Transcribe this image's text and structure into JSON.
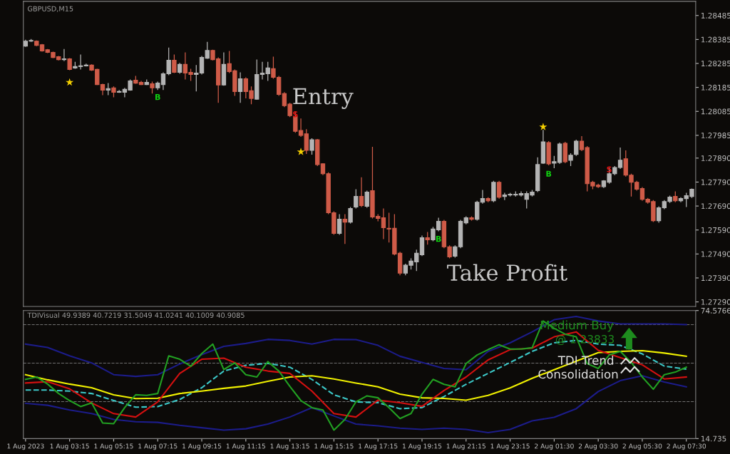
{
  "chart_data": [
    {
      "type": "candlestick",
      "title": "GBPUSD,M15",
      "tick_labels": "y",
      "ylim": [
        1.27271,
        1.28544
      ],
      "yticks": [
        1.28485,
        1.28385,
        1.28285,
        1.28185,
        1.28085,
        1.27985,
        {
          "value": 1.2789,
          "label": "1.27890"
        },
        {
          "value": 1.2779,
          "label": "1.27790"
        },
        {
          "value": 1.2769,
          "label": "1.27690"
        },
        {
          "value": 1.2759,
          "label": "1.27590"
        },
        {
          "value": 1.2749,
          "label": "1.27490"
        },
        {
          "value": 1.2739,
          "label": "1.27390"
        },
        {
          "value": 1.2729,
          "label": "1.27290"
        }
      ],
      "series": [
        {
          "type": "candlestick",
          "colors": [
            "#b4b4b4",
            "#b4b4b4",
            "#cf5b48",
            "#cf5b48",
            "#cf5b48",
            "#cf5b48",
            "#cf5b48",
            "#b4b4b4",
            "#cf5b48",
            "#b4b4b4",
            "#b4b4b4",
            "#b4b4b4",
            "#cf5b48",
            "#cf5b48",
            "#cf5b48",
            "#b4b4b4",
            "#cf5b48",
            "#b4b4b4",
            "#b4b4b4",
            "#b4b4b4",
            "#cf5b48",
            "#cf5b48",
            "#b4b4b4",
            "#cf5b48",
            "#b4b4b4",
            "#b4b4b4",
            "#b4b4b4",
            "#cf5b48",
            "#b4b4b4",
            "#cf5b48",
            "#cf5b48",
            "#b4b4b4",
            "#b4b4b4",
            "#b4b4b4",
            "#cf5b48",
            "#cf5b48",
            "#b4b4b4",
            "#cf5b48",
            "#cf5b48",
            "#b4b4b4",
            "#cf5b48",
            "#cf5b48",
            "#b4b4b4",
            "#b4b4b4",
            "#b4b4b4",
            "#cf5b48",
            "#cf5b48",
            "#cf5b48",
            "#cf5b48",
            "#cf5b48",
            "#cf5b48",
            "#cf5b48",
            "#b4b4b4",
            "#cf5b48",
            "#cf5b48",
            "#cf5b48",
            "#cf5b48",
            "#b4b4b4",
            "#cf5b48",
            "#b4b4b4",
            "#b4b4b4",
            "#cf5b48",
            "#b4b4b4",
            "#cf5b48",
            "#cf5b48",
            "#cf5b48",
            "#cf5b48",
            "#cf5b48",
            "#cf5b48",
            "#b4b4b4",
            "#b4b4b4",
            "#b4b4b4",
            "#b4b4b4",
            "#cf5b48",
            "#b4b4b4",
            "#b4b4b4",
            "#cf5b48",
            "#cf5b48",
            "#b4b4b4",
            "#b4b4b4",
            "#b4b4b4",
            "#cf5b48",
            "#b4b4b4",
            "#b4b4b4",
            "#cf5b48",
            "#b4b4b4",
            "#cf5b48",
            "#b4b4b4",
            "#b4b4b4",
            "#b4b4b4",
            "#b4b4b4",
            "#b4b4b4",
            "#b4b4b4",
            "#b4b4b4",
            "#b4b4b4",
            "#cf5b48",
            "#b4b4b4",
            "#b4b4b4",
            "#cf5b48",
            "#b4b4b4",
            "#b4b4b4",
            "#cf5b48",
            "#cf5b48",
            "#cf5b48",
            "#cf5b48",
            "#b4b4b4",
            "#b4b4b4",
            "#b4b4b4",
            "#b4b4b4",
            "#cf5b48",
            "#cf5b48",
            "#cf5b48",
            "#cf5b48",
            "#cf5b48",
            "#cf5b48",
            "#b4b4b4",
            "#b4b4b4",
            "#b4b4b4",
            "#cf5b48",
            "#b4b4b4",
            "#b4b4b4",
            "#b4b4b4"
          ],
          "ohlc": [
            [
              1.28357,
              1.28384,
              1.28354,
              1.28378
            ],
            [
              1.28378,
              1.28387,
              1.28375,
              1.28381
            ],
            [
              1.28378,
              1.28381,
              1.28357,
              1.2836
            ],
            [
              1.28363,
              1.28366,
              1.28334,
              1.28337
            ],
            [
              1.28342,
              1.28345,
              1.28328,
              1.28331
            ],
            [
              1.28331,
              1.28334,
              1.28307,
              1.2831
            ],
            [
              1.28313,
              1.28316,
              1.28298,
              1.28301
            ],
            [
              1.28301,
              1.28345,
              1.28295,
              1.28304
            ],
            [
              1.28304,
              1.28307,
              1.28257,
              1.2826
            ],
            [
              1.28266,
              1.28292,
              1.28263,
              1.28272
            ],
            [
              1.28272,
              1.28322,
              1.2826,
              1.28275
            ],
            [
              1.28275,
              1.28284,
              1.28272,
              1.28278
            ],
            [
              1.28278,
              1.28281,
              1.28254,
              1.28257
            ],
            [
              1.2826,
              1.28263,
              1.28195,
              1.28197
            ],
            [
              1.28197,
              1.282,
              1.28153,
              1.28174
            ],
            [
              1.28174,
              1.28203,
              1.28153,
              1.2818
            ],
            [
              1.28183,
              1.28189,
              1.28144,
              1.28165
            ],
            [
              1.28165,
              1.28174,
              1.28162,
              1.28168
            ],
            [
              1.28165,
              1.28183,
              1.28144,
              1.28177
            ],
            [
              1.28174,
              1.28218,
              1.28171,
              1.28212
            ],
            [
              1.28215,
              1.28233,
              1.282,
              1.28203
            ],
            [
              1.28206,
              1.28212,
              1.28195,
              1.28197
            ],
            [
              1.28197,
              1.28218,
              1.28195,
              1.28206
            ],
            [
              1.282,
              1.28209,
              1.28159,
              1.28183
            ],
            [
              1.28183,
              1.28209,
              1.28174,
              1.28203
            ],
            [
              1.28197,
              1.28248,
              1.28174,
              1.28242
            ],
            [
              1.28242,
              1.28351,
              1.28236,
              1.28298
            ],
            [
              1.28298,
              1.28322,
              1.28245,
              1.28248
            ],
            [
              1.28248,
              1.28287,
              1.28242,
              1.28281
            ],
            [
              1.28281,
              1.28331,
              1.28218,
              1.28245
            ],
            [
              1.28248,
              1.28263,
              1.28212,
              1.28239
            ],
            [
              1.28239,
              1.28278,
              1.28168,
              1.28245
            ],
            [
              1.28245,
              1.28316,
              1.28239,
              1.2831
            ],
            [
              1.28307,
              1.28375,
              1.28304,
              1.28339
            ],
            [
              1.28339,
              1.28342,
              1.28298,
              1.28301
            ],
            [
              1.28304,
              1.2831,
              1.28121,
              1.28195
            ],
            [
              1.28195,
              1.28331,
              1.28192,
              1.28281
            ],
            [
              1.28284,
              1.28337,
              1.28245,
              1.28251
            ],
            [
              1.28254,
              1.2826,
              1.2815,
              1.28168
            ],
            [
              1.28168,
              1.28248,
              1.28121,
              1.28221
            ],
            [
              1.28221,
              1.28227,
              1.28139,
              1.28168
            ],
            [
              1.28171,
              1.28189,
              1.28115,
              1.28139
            ],
            [
              1.28136,
              1.28301,
              1.28133,
              1.28239
            ],
            [
              1.28239,
              1.28292,
              1.28218,
              1.28245
            ],
            [
              1.28242,
              1.28292,
              1.28212,
              1.28266
            ],
            [
              1.28263,
              1.28313,
              1.28221,
              1.28227
            ],
            [
              1.28227,
              1.28233,
              1.2815,
              1.28156
            ],
            [
              1.28159,
              1.28165,
              1.28103,
              1.28109
            ],
            [
              1.28115,
              1.28121,
              1.28061,
              1.28067
            ],
            [
              1.28064,
              1.28085,
              1.27996,
              1.28002
            ],
            [
              1.28005,
              1.28055,
              1.27979,
              1.27985
            ],
            [
              1.27991,
              1.28011,
              1.27907,
              1.27922
            ],
            [
              1.27922,
              1.27973,
              1.27904,
              1.27967
            ],
            [
              1.27967,
              1.2797,
              1.27857,
              1.27863
            ],
            [
              1.27866,
              1.27869,
              1.27819,
              1.27825
            ],
            [
              1.27825,
              1.27831,
              1.27656,
              1.27662
            ],
            [
              1.27662,
              1.27668,
              1.2757,
              1.27576
            ],
            [
              1.27576,
              1.27656,
              1.2757,
              1.27635
            ],
            [
              1.27635,
              1.27656,
              1.27532,
              1.27623
            ],
            [
              1.27623,
              1.27686,
              1.27617,
              1.2768
            ],
            [
              1.27686,
              1.2776,
              1.2768,
              1.2773
            ],
            [
              1.2773,
              1.2781,
              1.27686,
              1.27692
            ],
            [
              1.27689,
              1.27754,
              1.27683,
              1.27748
            ],
            [
              1.27754,
              1.27937,
              1.27638,
              1.27644
            ],
            [
              1.27647,
              1.27656,
              1.27626,
              1.27638
            ],
            [
              1.27641,
              1.2768,
              1.27552,
              1.276
            ],
            [
              1.27597,
              1.27662,
              1.27538,
              1.27594
            ],
            [
              1.27597,
              1.27656,
              1.27484,
              1.2749
            ],
            [
              1.27493,
              1.27499,
              1.27401,
              1.2741
            ],
            [
              1.2741,
              1.27449,
              1.27401,
              1.27443
            ],
            [
              1.27443,
              1.27472,
              1.27425,
              1.2746
            ],
            [
              1.27457,
              1.27508,
              1.27419,
              1.27493
            ],
            [
              1.27487,
              1.27567,
              1.27481,
              1.27558
            ],
            [
              1.27558,
              1.27582,
              1.27529,
              1.27549
            ],
            [
              1.27549,
              1.27603,
              1.27543,
              1.27594
            ],
            [
              1.27591,
              1.27641,
              1.27585,
              1.27626
            ],
            [
              1.27626,
              1.27632,
              1.27514,
              1.2752
            ],
            [
              1.2752,
              1.27526,
              1.27472,
              1.27478
            ],
            [
              1.27481,
              1.27526,
              1.27475,
              1.2752
            ],
            [
              1.2752,
              1.27632,
              1.27514,
              1.27626
            ],
            [
              1.2762,
              1.27647,
              1.27614,
              1.27641
            ],
            [
              1.27641,
              1.27647,
              1.27629,
              1.27635
            ],
            [
              1.27635,
              1.27712,
              1.27629,
              1.27706
            ],
            [
              1.27706,
              1.27757,
              1.277,
              1.27721
            ],
            [
              1.27721,
              1.27727,
              1.27706,
              1.27712
            ],
            [
              1.27712,
              1.27795,
              1.27706,
              1.27789
            ],
            [
              1.27789,
              1.27795,
              1.27721,
              1.27727
            ],
            [
              1.2773,
              1.27745,
              1.27715,
              1.27736
            ],
            [
              1.27736,
              1.27745,
              1.2773,
              1.27739
            ],
            [
              1.27736,
              1.27751,
              1.2773,
              1.27739
            ],
            [
              1.27736,
              1.27751,
              1.2773,
              1.27742
            ],
            [
              1.27718,
              1.27751,
              1.2768,
              1.27742
            ],
            [
              1.27736,
              1.27757,
              1.2773,
              1.27748
            ],
            [
              1.27754,
              1.27893,
              1.27748,
              1.27863
            ],
            [
              1.27869,
              1.28008,
              1.27866,
              1.27958
            ],
            [
              1.27955,
              1.27961,
              1.2786,
              1.27866
            ],
            [
              1.27869,
              1.27899,
              1.27848,
              1.27875
            ],
            [
              1.27872,
              1.27955,
              1.27866,
              1.27949
            ],
            [
              1.27952,
              1.27958,
              1.27869,
              1.27875
            ],
            [
              1.27881,
              1.2791,
              1.27857,
              1.27902
            ],
            [
              1.27905,
              1.27967,
              1.27899,
              1.27961
            ],
            [
              1.27961,
              1.27982,
              1.27919,
              1.27925
            ],
            [
              1.27934,
              1.2794,
              1.27751,
              1.27783
            ],
            [
              1.27789,
              1.27795,
              1.2776,
              1.27774
            ],
            [
              1.27777,
              1.27783,
              1.27765,
              1.27771
            ],
            [
              1.27771,
              1.27798,
              1.27765,
              1.27795
            ],
            [
              1.27789,
              1.27849,
              1.27783,
              1.27825
            ],
            [
              1.27825,
              1.27857,
              1.27819,
              1.27851
            ],
            [
              1.27851,
              1.27934,
              1.27845,
              1.27881
            ],
            [
              1.27887,
              1.27922,
              1.27813,
              1.27819
            ],
            [
              1.27819,
              1.27825,
              1.2773,
              1.27789
            ],
            [
              1.27789,
              1.27795,
              1.27754,
              1.2776
            ],
            [
              1.27763,
              1.27769,
              1.27712,
              1.27718
            ],
            [
              1.27718,
              1.27724,
              1.277,
              1.27706
            ],
            [
              1.27709,
              1.27715,
              1.27623,
              1.27629
            ],
            [
              1.27629,
              1.27689,
              1.2762,
              1.27683
            ],
            [
              1.27683,
              1.27715,
              1.27677,
              1.27709
            ],
            [
              1.27709,
              1.27733,
              1.27703,
              1.27727
            ],
            [
              1.2773,
              1.27751,
              1.27706,
              1.27712
            ],
            [
              1.27712,
              1.27727,
              1.27706,
              1.27721
            ],
            [
              1.27721,
              1.27745,
              1.27686,
              1.27733
            ],
            [
              1.2773,
              1.27763,
              1.27724,
              1.2776
            ]
          ]
        },
        {
          "type": "scatter",
          "marker": "star",
          "color": "#f5d000",
          "values": [
            null,
            null,
            null,
            null,
            null,
            null,
            null,
            null,
            1.28206,
            null,
            null,
            null,
            null,
            null,
            null,
            null,
            null,
            null,
            null,
            null,
            null,
            null,
            null,
            null,
            null,
            null,
            null,
            null,
            null,
            null,
            null,
            null,
            null,
            null,
            null,
            null,
            null,
            null,
            null,
            null,
            null,
            null,
            null,
            null,
            null,
            null,
            null,
            null,
            null,
            null,
            1.27916,
            null,
            null,
            null,
            null,
            null,
            null,
            null,
            null,
            null,
            null,
            null,
            null,
            null,
            null,
            null,
            null,
            null,
            null,
            null,
            null,
            null,
            null,
            null,
            null,
            null,
            null,
            null,
            null,
            null,
            null,
            null,
            null,
            null,
            null,
            null,
            null,
            null,
            null,
            null,
            null,
            null,
            null,
            null,
            1.2802,
            null,
            null,
            null,
            null,
            null,
            null,
            null,
            null,
            null,
            null,
            null,
            null,
            null,
            null,
            null,
            null,
            null,
            null,
            null,
            null,
            null,
            null,
            null,
            null,
            null,
            null,
            null
          ]
        }
      ],
      "annotations": [
        "Entry",
        "Take Profit",
        "B",
        "B",
        "B",
        "S",
        "S"
      ]
    },
    {
      "type": "line",
      "title": "TDIVisual 49.9389 40.7219 31.5049 41.0241 40.1009 40.9085",
      "categories": [
        "1 Aug 2023",
        null,
        null,
        null,
        null,
        null,
        null,
        null,
        "1 Aug 03:15",
        null,
        null,
        null,
        null,
        null,
        null,
        null,
        "1 Aug 05:15",
        null,
        null,
        null,
        null,
        null,
        null,
        null,
        "1 Aug 07:15",
        null,
        null,
        null,
        null,
        null,
        null,
        null,
        "1 Aug 09:15",
        null,
        null,
        null,
        null,
        null,
        null,
        null,
        "1 Aug 11:15",
        null,
        null,
        null,
        null,
        null,
        null,
        null,
        "1 Aug 13:15",
        null,
        null,
        null,
        null,
        null,
        null,
        null,
        "1 Aug 15:15",
        null,
        null,
        null,
        null,
        null,
        null,
        null,
        "1 Aug 17:15",
        null,
        null,
        null,
        null,
        null,
        null,
        null,
        "1 Aug 19:15",
        null,
        null,
        null,
        null,
        null,
        null,
        null,
        "1 Aug 21:15",
        null,
        null,
        null,
        null,
        null,
        null,
        null,
        "1 Aug 23:15",
        null,
        null,
        null,
        null,
        null,
        null,
        null,
        "2 Aug 01:30",
        null,
        null,
        null,
        null,
        null,
        null,
        null,
        "2 Aug 03:30",
        null,
        null,
        null,
        null,
        null,
        null,
        null,
        "2 Aug 05:30",
        null,
        null,
        null,
        null,
        null,
        null,
        null,
        "2 Aug 07:30",
        null
      ],
      "ylim": [
        14.735,
        74.5766
      ],
      "yticks": [
        74.5766,
        14.735
      ],
      "ref_lines": [
        {
          "axis": "y",
          "value": 68,
          "color": "#707070",
          "line_style": "dashed"
        },
        {
          "axis": "y",
          "value": 50,
          "color": "#707070",
          "line_style": "dashed"
        },
        {
          "axis": "y",
          "value": 32,
          "color": "#707070",
          "line_style": "dashed"
        }
      ],
      "series": [
        {
          "color": "#1c1c8a",
          "line_style": "solid",
          "values": [
            58.9,
            null,
            null,
            null,
            57.3,
            null,
            null,
            null,
            53.4,
            null,
            null,
            null,
            50.1,
            null,
            null,
            null,
            44.6,
            null,
            null,
            null,
            43.8,
            null,
            null,
            null,
            44.6,
            null,
            null,
            null,
            49.6,
            null,
            null,
            null,
            54.0,
            null,
            null,
            null,
            57.8,
            null,
            null,
            null,
            59.2,
            null,
            null,
            null,
            61.1,
            null,
            null,
            null,
            60.6,
            null,
            null,
            null,
            58.9,
            null,
            null,
            null,
            61.1,
            null,
            null,
            null,
            61.0,
            null,
            null,
            null,
            58.3,
            null,
            null,
            null,
            53.2,
            null,
            null,
            null,
            50.3,
            null,
            null,
            null,
            47.5,
            null,
            null,
            null,
            46.9,
            null,
            null,
            null,
            55.5,
            null,
            null,
            null,
            59.5,
            null,
            null,
            null,
            64.6,
            null,
            null,
            null,
            70.3,
            null,
            null,
            null,
            71.8,
            null,
            null,
            null,
            69.7,
            null,
            null,
            null,
            68.3,
            null,
            null,
            null,
            68.3,
            null,
            null,
            null,
            68.3,
            null,
            null,
            null,
            68.0,
            null
          ]
        },
        {
          "color": "#1c1c8a",
          "line_style": "solid",
          "values": [
            31.2,
            null,
            null,
            null,
            30.3,
            null,
            null,
            null,
            28.1,
            null,
            null,
            null,
            26.4,
            null,
            null,
            null,
            23.7,
            null,
            null,
            null,
            22.6,
            null,
            null,
            null,
            22.3,
            null,
            null,
            null,
            20.9,
            null,
            null,
            null,
            19.8,
            null,
            null,
            null,
            18.7,
            null,
            null,
            null,
            19.3,
            null,
            null,
            null,
            21.5,
            null,
            null,
            null,
            24.8,
            null,
            null,
            null,
            29.2,
            null,
            null,
            null,
            25.3,
            null,
            null,
            null,
            21.5,
            null,
            null,
            null,
            20.7,
            null,
            null,
            null,
            19.6,
            null,
            null,
            null,
            19.0,
            null,
            null,
            null,
            19.6,
            null,
            null,
            null,
            19.0,
            null,
            null,
            null,
            17.5,
            null,
            null,
            null,
            19.0,
            null,
            null,
            null,
            23.0,
            null,
            null,
            null,
            24.7,
            null,
            null,
            null,
            28.7,
            null,
            null,
            null,
            36.7,
            null,
            null,
            null,
            41.8,
            null,
            null,
            null,
            44.1,
            null,
            null,
            null,
            41.2,
            null,
            null,
            null,
            38.9,
            null
          ]
        },
        {
          "color": "#3cc8c8",
          "line_style": "dashed",
          "values": [
            37.4,
            null,
            null,
            null,
            37.4,
            null,
            null,
            null,
            36.9,
            null,
            null,
            null,
            35.8,
            null,
            null,
            null,
            32.5,
            null,
            null,
            null,
            29.4,
            null,
            null,
            null,
            29.7,
            null,
            null,
            null,
            33.0,
            null,
            null,
            null,
            38.5,
            null,
            null,
            null,
            46.3,
            null,
            null,
            null,
            49.0,
            null,
            null,
            null,
            49.9,
            null,
            null,
            null,
            48.1,
            null,
            null,
            null,
            42.4,
            null,
            null,
            null,
            35.2,
            null,
            null,
            null,
            31.9,
            null,
            null,
            null,
            31.5,
            null,
            null,
            null,
            28.7,
            null,
            null,
            null,
            29.2,
            null,
            null,
            null,
            34.4,
            null,
            null,
            null,
            40.1,
            null,
            null,
            null,
            45.2,
            null,
            null,
            null,
            50.3,
            null,
            null,
            null,
            55.5,
            null,
            null,
            null,
            59.5,
            null,
            null,
            null,
            60.6,
            null,
            null,
            null,
            58.9,
            null,
            null,
            null,
            58.3,
            null,
            null,
            null,
            54.3,
            null,
            null,
            null,
            48.6,
            null,
            null,
            null,
            47.2,
            null
          ]
        },
        {
          "color": "#f0f000",
          "line_style": "solid",
          "values": [
            44.6,
            null,
            null,
            null,
            42.2,
            null,
            null,
            null,
            40.2,
            null,
            null,
            null,
            38.5,
            null,
            null,
            null,
            35.2,
            null,
            null,
            null,
            33.4,
            null,
            null,
            null,
            33.6,
            null,
            null,
            null,
            35.8,
            null,
            null,
            null,
            36.9,
            null,
            null,
            null,
            38.2,
            null,
            null,
            null,
            39.3,
            null,
            null,
            null,
            41.5,
            null,
            null,
            null,
            43.5,
            null,
            null,
            null,
            44.1,
            null,
            null,
            null,
            42.6,
            null,
            null,
            null,
            40.7,
            null,
            null,
            null,
            38.9,
            null,
            null,
            null,
            35.5,
            null,
            null,
            null,
            33.8,
            null,
            null,
            null,
            33.5,
            null,
            null,
            null,
            32.7,
            null,
            null,
            null,
            34.9,
            null,
            null,
            null,
            38.4,
            null,
            null,
            null,
            42.9,
            null,
            null,
            null,
            46.9,
            null,
            null,
            null,
            50.9,
            null,
            null,
            null,
            54.9,
            null,
            null,
            null,
            55.5,
            null,
            null,
            null,
            55.8,
            null,
            null,
            null,
            54.7,
            null,
            null,
            null,
            53.2,
            null
          ]
        },
        {
          "color": "#d41010",
          "line_style": "solid",
          "values": [
            40.7,
            null,
            null,
            null,
            41.3,
            null,
            null,
            null,
            38.0,
            null,
            null,
            null,
            31.4,
            null,
            null,
            null,
            26.4,
            null,
            null,
            null,
            24.8,
            null,
            null,
            null,
            31.9,
            null,
            null,
            null,
            45.2,
            null,
            null,
            null,
            51.8,
            null,
            null,
            null,
            52.3,
            null,
            null,
            null,
            48.1,
            null,
            null,
            null,
            46.3,
            null,
            null,
            null,
            45.2,
            null,
            null,
            null,
            36.9,
            null,
            null,
            null,
            26.4,
            null,
            null,
            null,
            24.8,
            null,
            null,
            null,
            32.7,
            null,
            null,
            null,
            31.5,
            null,
            null,
            null,
            29.8,
            null,
            null,
            null,
            37.2,
            null,
            null,
            null,
            43.5,
            null,
            null,
            null,
            51.5,
            null,
            null,
            null,
            56.3,
            null,
            null,
            null,
            57.0,
            null,
            null,
            null,
            62.3,
            null,
            null,
            null,
            64.6,
            null,
            null,
            null,
            56.0,
            null,
            null,
            null,
            52.6,
            null,
            null,
            null,
            49.2,
            null,
            null,
            null,
            42.6,
            null,
            null,
            null,
            43.5,
            null
          ]
        },
        {
          "color": "#22a022",
          "line_style": "solid",
          "values": [
            42.4,
            null,
            43.5,
            null,
            40.2,
            null,
            35.8,
            null,
            32.5,
            null,
            29.7,
            null,
            31.4,
            null,
            22.0,
            null,
            21.7,
            null,
            29.2,
            null,
            35.2,
            null,
            34.9,
            null,
            35.8,
            null,
            53.4,
            null,
            51.8,
            null,
            48.5,
            null,
            54.5,
            null,
            58.9,
            null,
            47.0,
            null,
            50.1,
            null,
            44.6,
            null,
            43.5,
            null,
            50.7,
            null,
            46.3,
            null,
            39.1,
            null,
            32.5,
            null,
            29.2,
            null,
            28.1,
            null,
            18.7,
            null,
            23.7,
            null,
            31.9,
            null,
            34.7,
            null,
            33.8,
            null,
            29.2,
            null,
            24.1,
            null,
            26.4,
            null,
            35.5,
            null,
            42.4,
            null,
            40.1,
            null,
            38.9,
            null,
            49.8,
            null,
            53.8,
            null,
            56.3,
            null,
            58.6,
            null,
            56.6,
            null,
            56.6,
            null,
            57.2,
            null,
            69.7,
            null,
            66.3,
            null,
            63.5,
            null,
            62.3,
            null,
            49.8,
            null,
            47.5,
            null,
            53.8,
            null,
            55.5,
            null,
            50.3,
            null,
            43.5,
            null,
            37.8,
            null,
            44.6,
            null,
            45.8,
            null,
            48.1,
            null
          ]
        }
      ],
      "annotations": [
        "Medium Buy",
        "@ 1.23833",
        {
          "text": "TDI Trend",
          "y": 50.8
        },
        "Consolidation"
      ]
    }
  ]
}
